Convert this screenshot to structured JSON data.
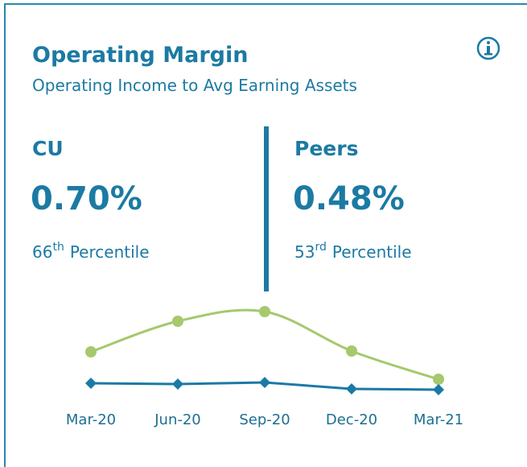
{
  "header": {
    "title": "Operating Margin",
    "subtitle": "Operating Income to Avg Earning Assets"
  },
  "cu": {
    "label": "CU",
    "value": "0.70%",
    "rank": "66",
    "suffix": "th",
    "rank_label": "Percentile"
  },
  "peers": {
    "label": "Peers",
    "value": "0.48%",
    "rank": "53",
    "suffix": "rd",
    "rank_label": "Percentile"
  },
  "chart_data": {
    "type": "line",
    "categories": [
      "Mar-20",
      "Jun-20",
      "Sep-20",
      "Dec-20",
      "Mar-21"
    ],
    "series": [
      {
        "color": "#a5c96c",
        "marker": "circle",
        "smooth": true,
        "values": [
          63,
          101,
          113,
          64,
          29
        ]
      },
      {
        "color": "#1b7aa5",
        "marker": "diamond",
        "smooth": false,
        "values": [
          24,
          23,
          25,
          17,
          16
        ]
      }
    ],
    "ylim": [
      0,
      130
    ]
  }
}
